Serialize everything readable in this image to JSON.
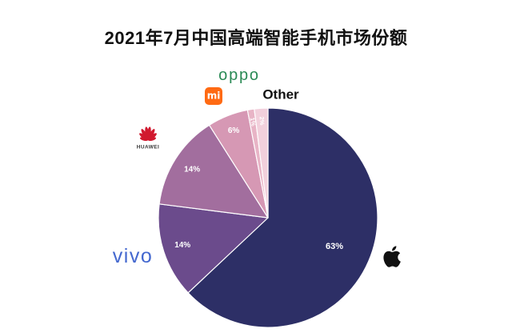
{
  "chart_data": {
    "type": "pie",
    "title": "2021年7月中国高端智能手机市场份额",
    "slices": [
      {
        "logo": "apple-logo-icon",
        "logo_color": "#111111",
        "value": 63,
        "value_label": "63%",
        "color": "#2d2f66"
      },
      {
        "label": "vivo",
        "logo": "vivo-logo",
        "logo_color": "#4468cf",
        "value": 14,
        "value_label": "14%",
        "color": "#6b4b8c"
      },
      {
        "label": "HUAWEI",
        "logo": "huawei-logo",
        "logo_color": "#d1192f",
        "value": 14,
        "value_label": "14%",
        "color": "#a26e9e"
      },
      {
        "label": "mi",
        "logo": "xiaomi-logo",
        "logo_color": "#ff6a13",
        "value": 6,
        "value_label": "6%",
        "color": "#d698b4"
      },
      {
        "label": "oppo",
        "logo": "oppo-logo",
        "logo_color": "#2a8a55",
        "value": 1,
        "value_label": "1%",
        "color": "#e8b4c6"
      },
      {
        "label": "Other",
        "value": 2,
        "value_label": "2%",
        "color": "#f2d0dc"
      }
    ]
  }
}
